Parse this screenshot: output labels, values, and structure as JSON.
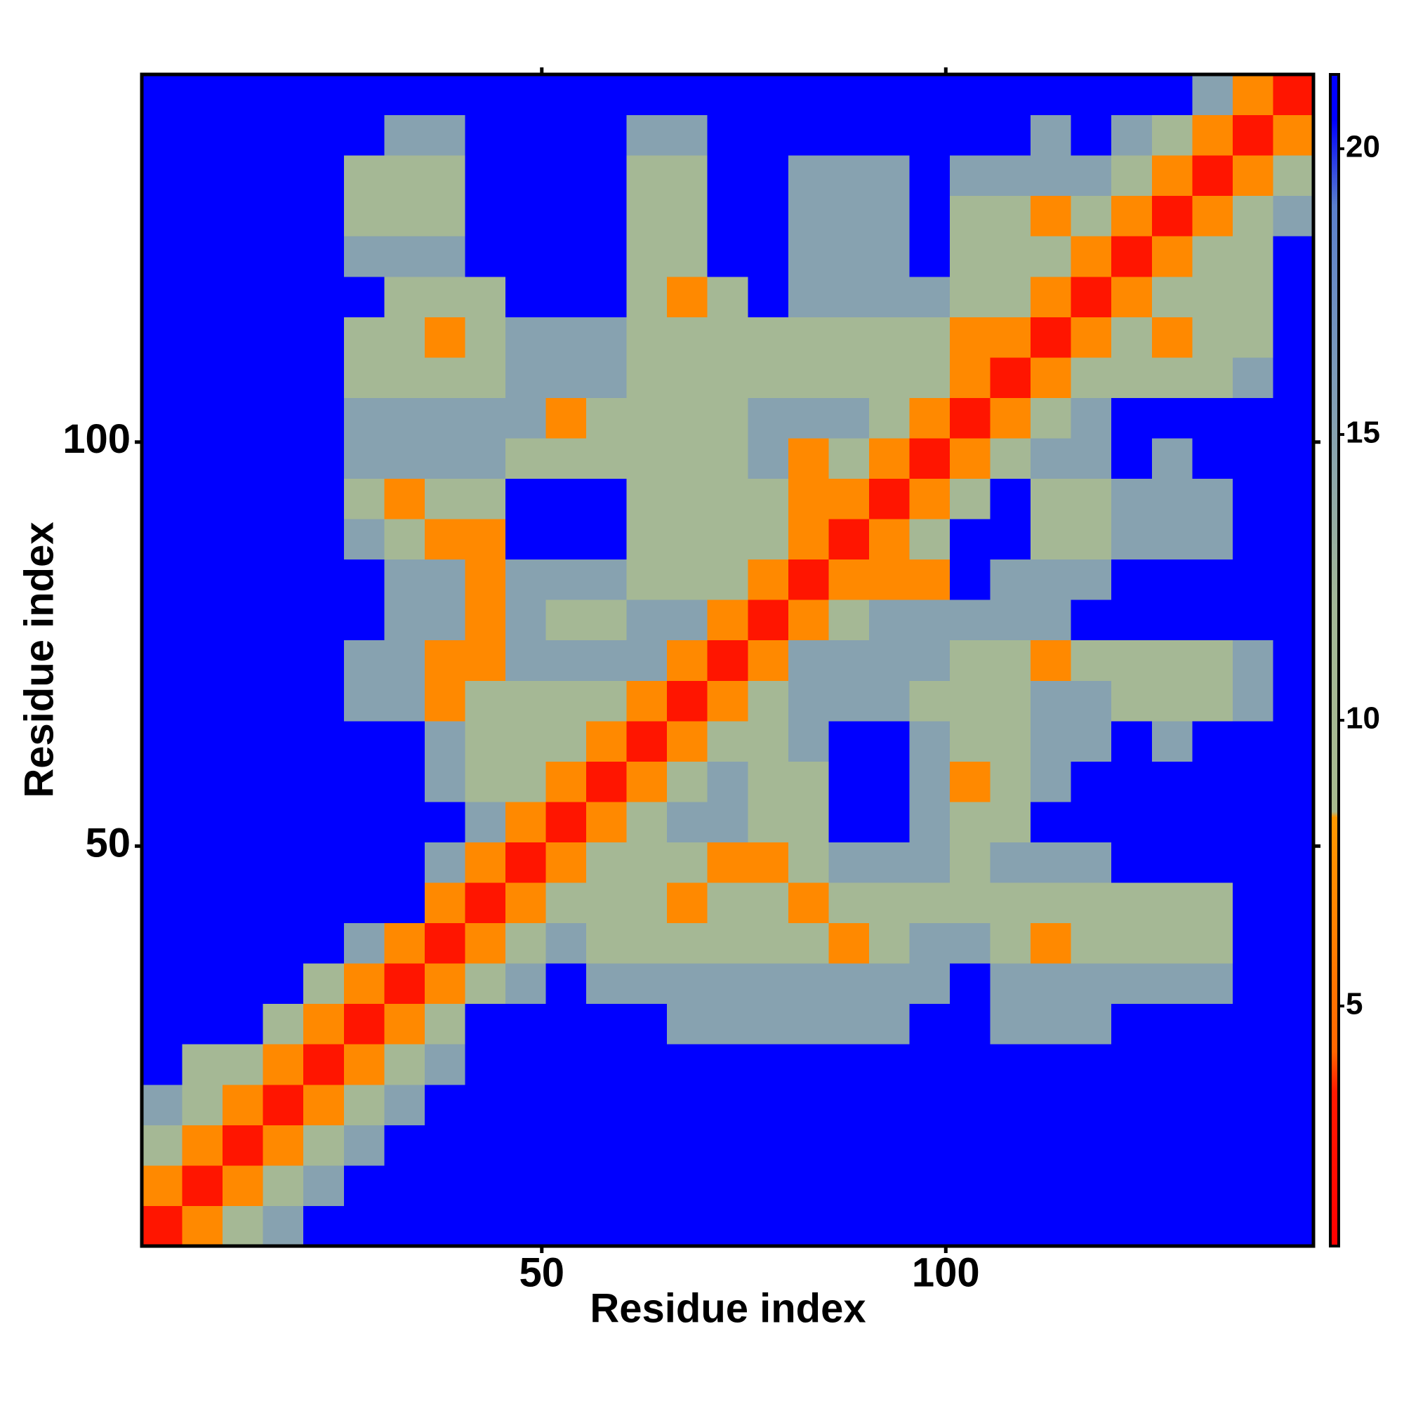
{
  "chart_data": {
    "type": "heatmap",
    "xlabel": "Residue index",
    "ylabel": "Residue index",
    "xbins": [
      0.5,
      5.5,
      10.5,
      15.5,
      20.5,
      25.5,
      30.5,
      35.5,
      40.5,
      45.5,
      50.5,
      55.5,
      60.5,
      65.5,
      70.5,
      75.5,
      80.5,
      85.5,
      90.5,
      95.5,
      100.5,
      105.5,
      110.5,
      115.5,
      120.5,
      125.5,
      130.5,
      135.5,
      140.5,
      145.5
    ],
    "ybins": [
      0.5,
      5.5,
      10.5,
      15.5,
      20.5,
      25.5,
      30.5,
      35.5,
      40.5,
      45.5,
      50.5,
      55.5,
      60.5,
      65.5,
      70.5,
      75.5,
      80.5,
      85.5,
      90.5,
      95.5,
      100.5,
      105.5,
      110.5,
      115.5,
      120.5,
      125.5,
      130.5,
      135.5,
      140.5,
      145.5
    ],
    "values": [
      [
        3,
        7,
        11,
        15,
        21,
        21,
        21,
        21,
        21,
        21,
        21,
        21,
        21,
        21,
        21,
        21,
        21,
        21,
        21,
        21,
        21,
        21,
        21,
        21,
        21,
        21,
        21,
        21,
        21
      ],
      [
        7,
        3,
        7,
        11,
        15,
        21,
        21,
        21,
        21,
        21,
        21,
        21,
        21,
        21,
        21,
        21,
        21,
        21,
        21,
        21,
        21,
        21,
        21,
        21,
        21,
        21,
        21,
        21,
        21
      ],
      [
        11,
        7,
        3,
        7,
        11,
        15,
        21,
        21,
        21,
        21,
        21,
        21,
        21,
        21,
        21,
        21,
        21,
        21,
        21,
        21,
        21,
        21,
        21,
        21,
        21,
        21,
        21,
        21,
        21
      ],
      [
        15,
        11,
        7,
        3,
        7,
        11,
        15,
        21,
        21,
        21,
        21,
        21,
        21,
        21,
        21,
        21,
        21,
        21,
        21,
        21,
        21,
        21,
        21,
        21,
        21,
        21,
        21,
        21,
        21
      ],
      [
        21,
        11,
        11,
        7,
        3,
        7,
        11,
        15,
        21,
        21,
        21,
        21,
        21,
        21,
        21,
        21,
        21,
        21,
        21,
        21,
        21,
        21,
        21,
        21,
        21,
        21,
        21,
        21,
        21
      ],
      [
        21,
        21,
        21,
        11,
        7,
        3,
        7,
        11,
        21,
        21,
        21,
        21,
        21,
        15,
        15,
        15,
        15,
        15,
        15,
        21,
        21,
        15,
        15,
        15,
        21,
        21,
        21,
        21,
        21
      ],
      [
        21,
        21,
        21,
        21,
        11,
        7,
        3,
        7,
        11,
        15,
        21,
        15,
        15,
        15,
        15,
        15,
        15,
        15,
        15,
        15,
        21,
        15,
        15,
        15,
        15,
        15,
        15,
        21,
        21
      ],
      [
        21,
        21,
        21,
        21,
        21,
        15,
        7,
        3,
        7,
        11,
        15,
        11,
        11,
        11,
        11,
        11,
        11,
        7,
        11,
        15,
        15,
        11,
        7,
        11,
        11,
        11,
        11,
        21,
        21
      ],
      [
        21,
        21,
        21,
        21,
        21,
        21,
        21,
        7,
        3,
        7,
        11,
        11,
        11,
        7,
        11,
        11,
        7,
        11,
        11,
        11,
        11,
        11,
        11,
        11,
        11,
        11,
        11,
        21,
        21
      ],
      [
        21,
        21,
        21,
        21,
        21,
        21,
        21,
        15,
        7,
        3,
        7,
        11,
        11,
        11,
        7,
        7,
        11,
        15,
        15,
        15,
        11,
        15,
        15,
        15,
        21,
        21,
        21,
        21,
        21
      ],
      [
        21,
        21,
        21,
        21,
        21,
        21,
        21,
        21,
        15,
        7,
        3,
        7,
        11,
        15,
        15,
        11,
        11,
        21,
        21,
        15,
        11,
        11,
        21,
        21,
        21,
        21,
        21,
        21,
        21
      ],
      [
        21,
        21,
        21,
        21,
        21,
        21,
        21,
        15,
        11,
        11,
        7,
        3,
        7,
        11,
        15,
        11,
        11,
        21,
        21,
        15,
        7,
        11,
        15,
        21,
        21,
        21,
        21,
        21,
        21
      ],
      [
        21,
        21,
        21,
        21,
        21,
        21,
        21,
        15,
        11,
        11,
        11,
        7,
        3,
        7,
        11,
        11,
        15,
        21,
        21,
        15,
        11,
        11,
        15,
        15,
        21,
        15,
        21,
        21,
        21
      ],
      [
        21,
        21,
        21,
        21,
        21,
        15,
        15,
        7,
        11,
        11,
        11,
        11,
        7,
        3,
        7,
        11,
        15,
        15,
        15,
        11,
        11,
        11,
        15,
        15,
        11,
        11,
        11,
        15,
        21
      ],
      [
        21,
        21,
        21,
        21,
        21,
        15,
        15,
        7,
        7,
        15,
        15,
        15,
        15,
        7,
        3,
        7,
        15,
        15,
        15,
        15,
        11,
        11,
        7,
        11,
        11,
        11,
        11,
        15,
        21
      ],
      [
        21,
        21,
        21,
        21,
        21,
        21,
        15,
        15,
        7,
        15,
        11,
        11,
        15,
        15,
        7,
        3,
        7,
        11,
        15,
        15,
        15,
        15,
        15,
        21,
        21,
        21,
        21,
        21,
        21
      ],
      [
        21,
        21,
        21,
        21,
        21,
        21,
        15,
        15,
        7,
        15,
        15,
        15,
        11,
        11,
        11,
        7,
        3,
        7,
        7,
        7,
        21,
        15,
        15,
        15,
        21,
        21,
        21,
        21,
        21
      ],
      [
        21,
        21,
        21,
        21,
        21,
        15,
        11,
        7,
        7,
        21,
        21,
        21,
        11,
        11,
        11,
        11,
        7,
        3,
        7,
        11,
        21,
        21,
        11,
        11,
        15,
        15,
        15,
        21,
        21
      ],
      [
        21,
        21,
        21,
        21,
        21,
        11,
        7,
        11,
        11,
        21,
        21,
        21,
        11,
        11,
        11,
        11,
        7,
        7,
        3,
        7,
        11,
        21,
        11,
        11,
        15,
        15,
        15,
        21,
        21
      ],
      [
        21,
        21,
        21,
        21,
        21,
        15,
        15,
        15,
        15,
        11,
        11,
        11,
        11,
        11,
        11,
        15,
        7,
        11,
        7,
        3,
        7,
        11,
        15,
        15,
        21,
        15,
        21,
        21,
        21
      ],
      [
        21,
        21,
        21,
        21,
        21,
        15,
        15,
        15,
        15,
        15,
        7,
        11,
        11,
        11,
        11,
        15,
        15,
        15,
        11,
        7,
        3,
        7,
        11,
        15,
        21,
        21,
        21,
        21,
        21
      ],
      [
        21,
        21,
        21,
        21,
        21,
        11,
        11,
        11,
        11,
        15,
        15,
        15,
        11,
        11,
        11,
        11,
        11,
        11,
        11,
        11,
        7,
        3,
        7,
        11,
        11,
        11,
        11,
        15,
        21
      ],
      [
        21,
        21,
        21,
        21,
        21,
        11,
        11,
        7,
        11,
        15,
        15,
        15,
        11,
        11,
        11,
        11,
        11,
        11,
        11,
        11,
        7,
        7,
        3,
        7,
        11,
        7,
        11,
        11,
        21
      ],
      [
        21,
        21,
        21,
        21,
        21,
        21,
        11,
        11,
        11,
        21,
        21,
        21,
        11,
        7,
        11,
        21,
        15,
        15,
        15,
        15,
        11,
        11,
        7,
        3,
        7,
        11,
        11,
        11,
        21
      ],
      [
        21,
        21,
        21,
        21,
        21,
        15,
        15,
        15,
        21,
        21,
        21,
        21,
        11,
        11,
        21,
        21,
        15,
        15,
        15,
        21,
        11,
        11,
        11,
        7,
        3,
        7,
        11,
        11,
        21
      ],
      [
        21,
        21,
        21,
        21,
        21,
        11,
        11,
        11,
        21,
        21,
        21,
        21,
        11,
        11,
        21,
        21,
        15,
        15,
        15,
        21,
        11,
        11,
        7,
        11,
        7,
        3,
        7,
        11,
        15
      ],
      [
        21,
        21,
        21,
        21,
        21,
        11,
        11,
        11,
        21,
        21,
        21,
        21,
        11,
        11,
        21,
        21,
        15,
        15,
        15,
        21,
        15,
        15,
        15,
        15,
        11,
        7,
        3,
        7,
        11
      ],
      [
        21,
        21,
        21,
        21,
        21,
        21,
        15,
        15,
        21,
        21,
        21,
        21,
        15,
        15,
        21,
        21,
        21,
        21,
        21,
        21,
        21,
        21,
        15,
        21,
        15,
        11,
        7,
        3,
        7
      ],
      [
        21,
        21,
        21,
        21,
        21,
        21,
        21,
        21,
        21,
        21,
        21,
        21,
        21,
        21,
        21,
        21,
        21,
        21,
        21,
        21,
        21,
        21,
        21,
        21,
        21,
        21,
        15,
        7,
        3
      ]
    ],
    "xlim": [
      0.5,
      145.5
    ],
    "ylim": [
      0.5,
      145.5
    ],
    "xticks": [
      50,
      100
    ],
    "yticks": [
      50,
      100
    ],
    "colorscale": [
      [
        0.8,
        "#ff0000"
      ],
      [
        3.5,
        "#ff1a00"
      ],
      [
        4.2,
        "#ff6600"
      ],
      [
        8.3,
        "#ff9900"
      ],
      [
        8.4,
        "#a9ba8e"
      ],
      [
        12,
        "#a3b797"
      ],
      [
        16,
        "#7d9bb8"
      ],
      [
        19,
        "#5a7fcc"
      ],
      [
        20.5,
        "#0000ff"
      ],
      [
        21.3,
        "#0000ff"
      ]
    ],
    "clim": [
      0.8,
      21.3
    ],
    "cticks": [
      5,
      10,
      15,
      20
    ]
  }
}
